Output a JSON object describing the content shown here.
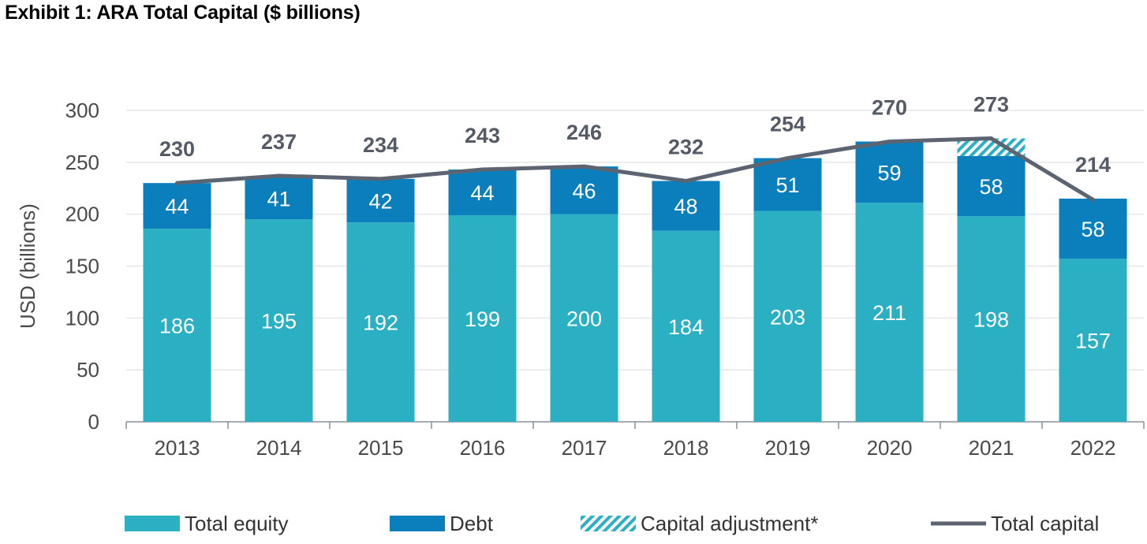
{
  "title": "Exhibit 1: ARA Total Capital ($ billions)",
  "chart_data": {
    "type": "bar",
    "stacked": true,
    "categories": [
      "2013",
      "2014",
      "2015",
      "2016",
      "2017",
      "2018",
      "2019",
      "2020",
      "2021",
      "2022"
    ],
    "series": [
      {
        "name": "Total equity",
        "color": "#2bafc3",
        "values": [
          186,
          195,
          192,
          199,
          200,
          184,
          203,
          211,
          198,
          157
        ]
      },
      {
        "name": "Debt",
        "color": "#0a7fbc",
        "values": [
          44,
          41,
          42,
          44,
          46,
          48,
          51,
          59,
          58,
          58
        ]
      },
      {
        "name": "Capital adjustment*",
        "color": "#2bafc3",
        "pattern": "hatch",
        "values": [
          0,
          0,
          0,
          0,
          0,
          0,
          0,
          0,
          17,
          0
        ]
      }
    ],
    "line": {
      "name": "Total capital",
      "color": "#5b6470",
      "values": [
        230,
        237,
        234,
        243,
        246,
        232,
        254,
        270,
        273,
        214
      ]
    },
    "totals_labels": [
      "230",
      "237",
      "234",
      "243",
      "246",
      "232",
      "254",
      "270",
      "273",
      "214"
    ],
    "ylabel": "USD (billions)",
    "xlabel": "",
    "ylim": [
      0,
      300
    ],
    "yticks": [
      0,
      50,
      100,
      150,
      200,
      250,
      300
    ],
    "grid": true,
    "legend_position": "bottom"
  }
}
